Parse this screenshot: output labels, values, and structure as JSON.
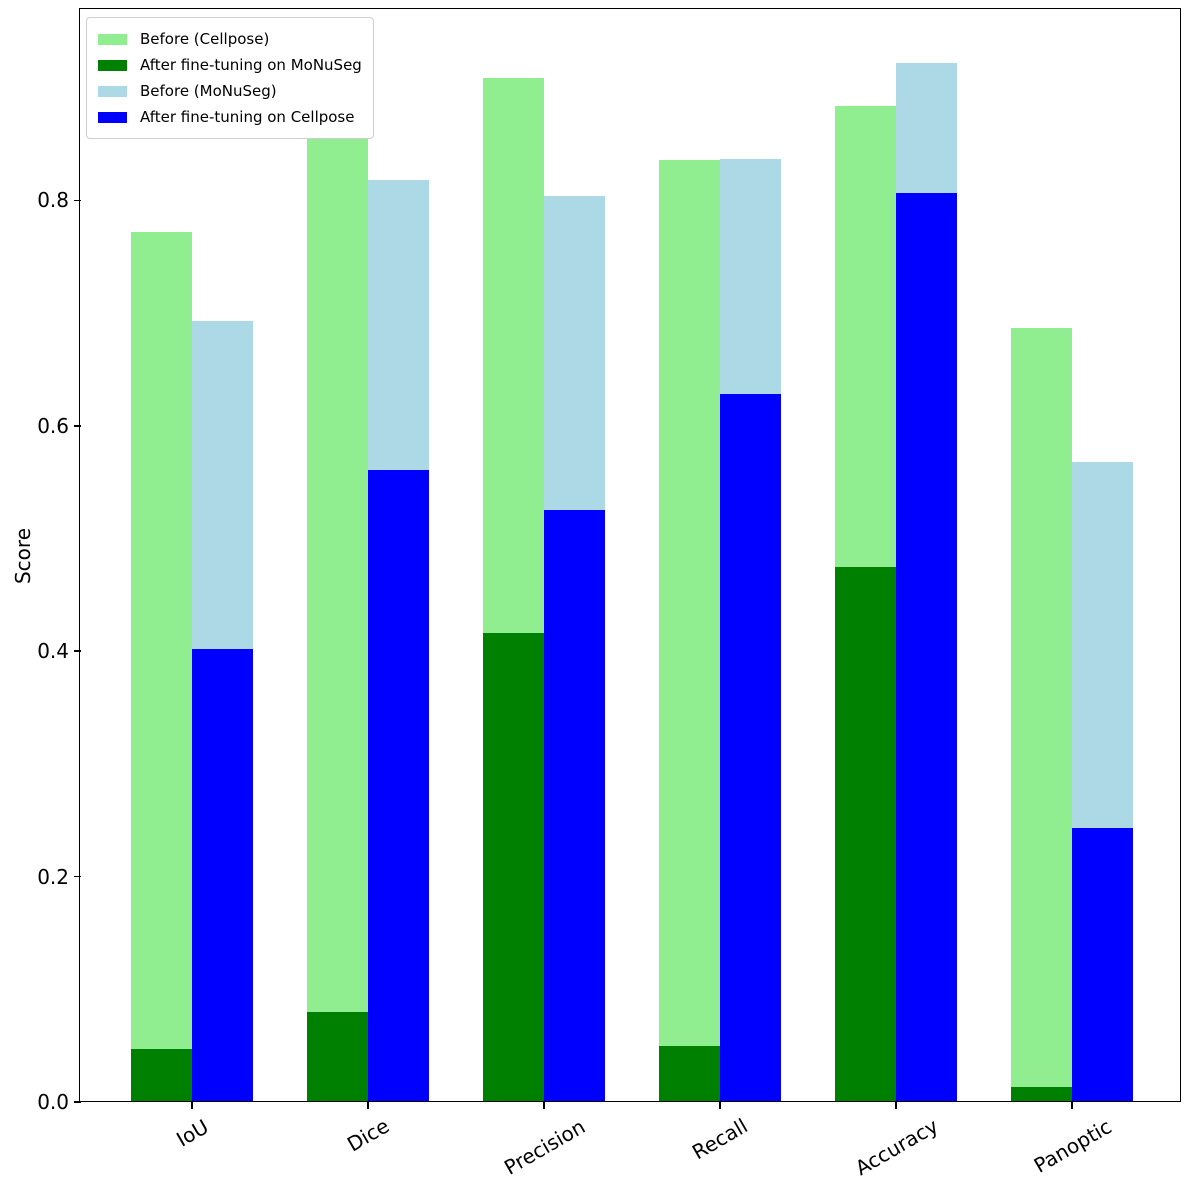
{
  "chart_data": {
    "type": "bar",
    "title": "",
    "xlabel": "",
    "ylabel": "Score",
    "categories": [
      "IoU",
      "Dice",
      "Precision",
      "Recall",
      "Accuracy",
      "Panoptic"
    ],
    "series": [
      {
        "name": "Before (Cellpose)",
        "color": "#90EE90",
        "pair": "left",
        "layer": "back",
        "values": [
          0.772,
          0.855,
          0.909,
          0.836,
          0.884,
          0.687
        ]
      },
      {
        "name": "After fine-tuning on MoNuSeg",
        "color": "#008000",
        "pair": "left",
        "layer": "front",
        "values": [
          0.047,
          0.08,
          0.416,
          0.05,
          0.475,
          0.013
        ]
      },
      {
        "name": "Before (MoNuSeg)",
        "color": "#ADD8E6",
        "pair": "right",
        "layer": "back",
        "values": [
          0.693,
          0.818,
          0.804,
          0.837,
          0.922,
          0.568
        ]
      },
      {
        "name": "After fine-tuning on Cellpose",
        "color": "#0000FF",
        "pair": "right",
        "layer": "front",
        "values": [
          0.402,
          0.561,
          0.525,
          0.628,
          0.807,
          0.243
        ]
      }
    ],
    "yticks": [
      "0.0",
      "0.2",
      "0.4",
      "0.6",
      "0.8"
    ],
    "ytick_values": [
      0.0,
      0.2,
      0.4,
      0.6,
      0.8
    ],
    "ylim": [
      0,
      0.969
    ],
    "grid": false,
    "legend_position": "upper left",
    "x_tick_rotation_deg": 30,
    "bar_mode": "overlaid pairs: each 'front' bar is drawn over the 'back' bar at the same x position"
  }
}
